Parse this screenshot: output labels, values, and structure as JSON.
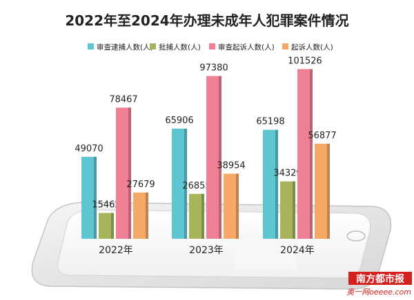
{
  "chart_data": {
    "type": "bar",
    "title": "2022年至2024年办理未成年人犯罪案件情况",
    "categories": [
      "2022年",
      "2023年",
      "2024年"
    ],
    "series": [
      {
        "name": "审查逮捕人数(人)",
        "values": [
          49070,
          65906,
          65198
        ],
        "color": "#5ec6d0"
      },
      {
        "name": "批捕人数(人)",
        "values": [
          15462,
          26855,
          34329
        ],
        "color": "#a8b45a"
      },
      {
        "name": "审查起诉人数(人)",
        "values": [
          78467,
          97380,
          101526
        ],
        "color": "#ee7f94"
      },
      {
        "name": "起诉人数(人)",
        "values": [
          27679,
          38954,
          56877
        ],
        "color": "#f6a866"
      }
    ],
    "ylim": [
      0,
      105000
    ],
    "grid": false,
    "legend_position": "top"
  },
  "watermark": {
    "brand": "南方都市报",
    "site": "奥一网oeeee.com"
  },
  "colors": {
    "title": "#222222",
    "label": "#222222",
    "phone_body": "#ececec",
    "phone_border": "#c9c9c9",
    "brand_red": "#d4211d"
  }
}
